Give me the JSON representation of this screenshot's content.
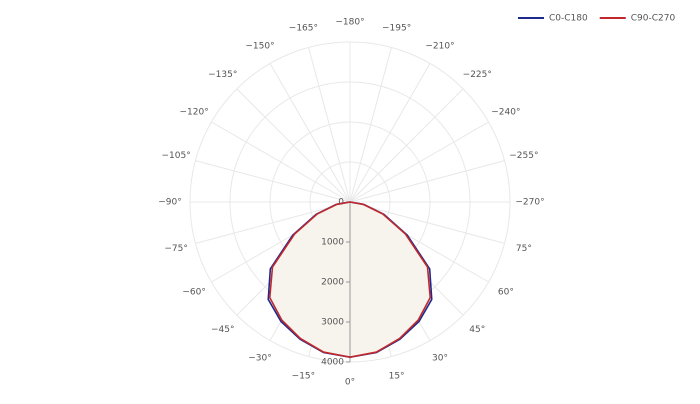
{
  "chart_data": {
    "type": "polar",
    "theta": [
      -90,
      -80,
      -70,
      -60,
      -50,
      -40,
      -30,
      -20,
      -10,
      0,
      10,
      20,
      30,
      40,
      50,
      60,
      70,
      80,
      90
    ],
    "series": [
      {
        "name": "C0-C180",
        "color": "#1f2a8f",
        "values": [
          0,
          350,
          900,
          1650,
          2600,
          3180,
          3450,
          3650,
          3820,
          3880,
          3820,
          3650,
          3450,
          3180,
          2600,
          1650,
          900,
          350,
          0
        ]
      },
      {
        "name": "C90-C270",
        "color": "#c0282d",
        "values": [
          0,
          330,
          870,
          1600,
          2530,
          3120,
          3410,
          3630,
          3810,
          3880,
          3810,
          3630,
          3410,
          3120,
          2530,
          1600,
          870,
          330,
          0
        ]
      }
    ],
    "fill": "#f6f4ec",
    "rlim": [
      0,
      4000
    ],
    "rticks": [
      0,
      1000,
      2000,
      3000,
      4000
    ],
    "thetaticks": [
      {
        "value": 0,
        "label": "0°"
      },
      {
        "value": 15,
        "label": "15°"
      },
      {
        "value": 30,
        "label": "30°"
      },
      {
        "value": 45,
        "label": "45°"
      },
      {
        "value": 60,
        "label": "60°"
      },
      {
        "value": 75,
        "label": "75°"
      },
      {
        "value": -270,
        "label": "−270°"
      },
      {
        "value": -255,
        "label": "−255°"
      },
      {
        "value": -240,
        "label": "−240°"
      },
      {
        "value": -225,
        "label": "−225°"
      },
      {
        "value": -210,
        "label": "−210°"
      },
      {
        "value": -195,
        "label": "−195°"
      },
      {
        "value": -180,
        "label": "−180°"
      },
      {
        "value": -165,
        "label": "−165°"
      },
      {
        "value": -150,
        "label": "−150°"
      },
      {
        "value": -135,
        "label": "−135°"
      },
      {
        "value": -120,
        "label": "−120°"
      },
      {
        "value": -105,
        "label": "−105°"
      },
      {
        "value": -90,
        "label": "−90°"
      },
      {
        "value": -75,
        "label": "−75°"
      },
      {
        "value": -60,
        "label": "−60°"
      },
      {
        "value": -45,
        "label": "−45°"
      },
      {
        "value": -30,
        "label": "−30°"
      },
      {
        "value": -15,
        "label": "−15°"
      }
    ],
    "grid": true,
    "legend": "top-right"
  }
}
